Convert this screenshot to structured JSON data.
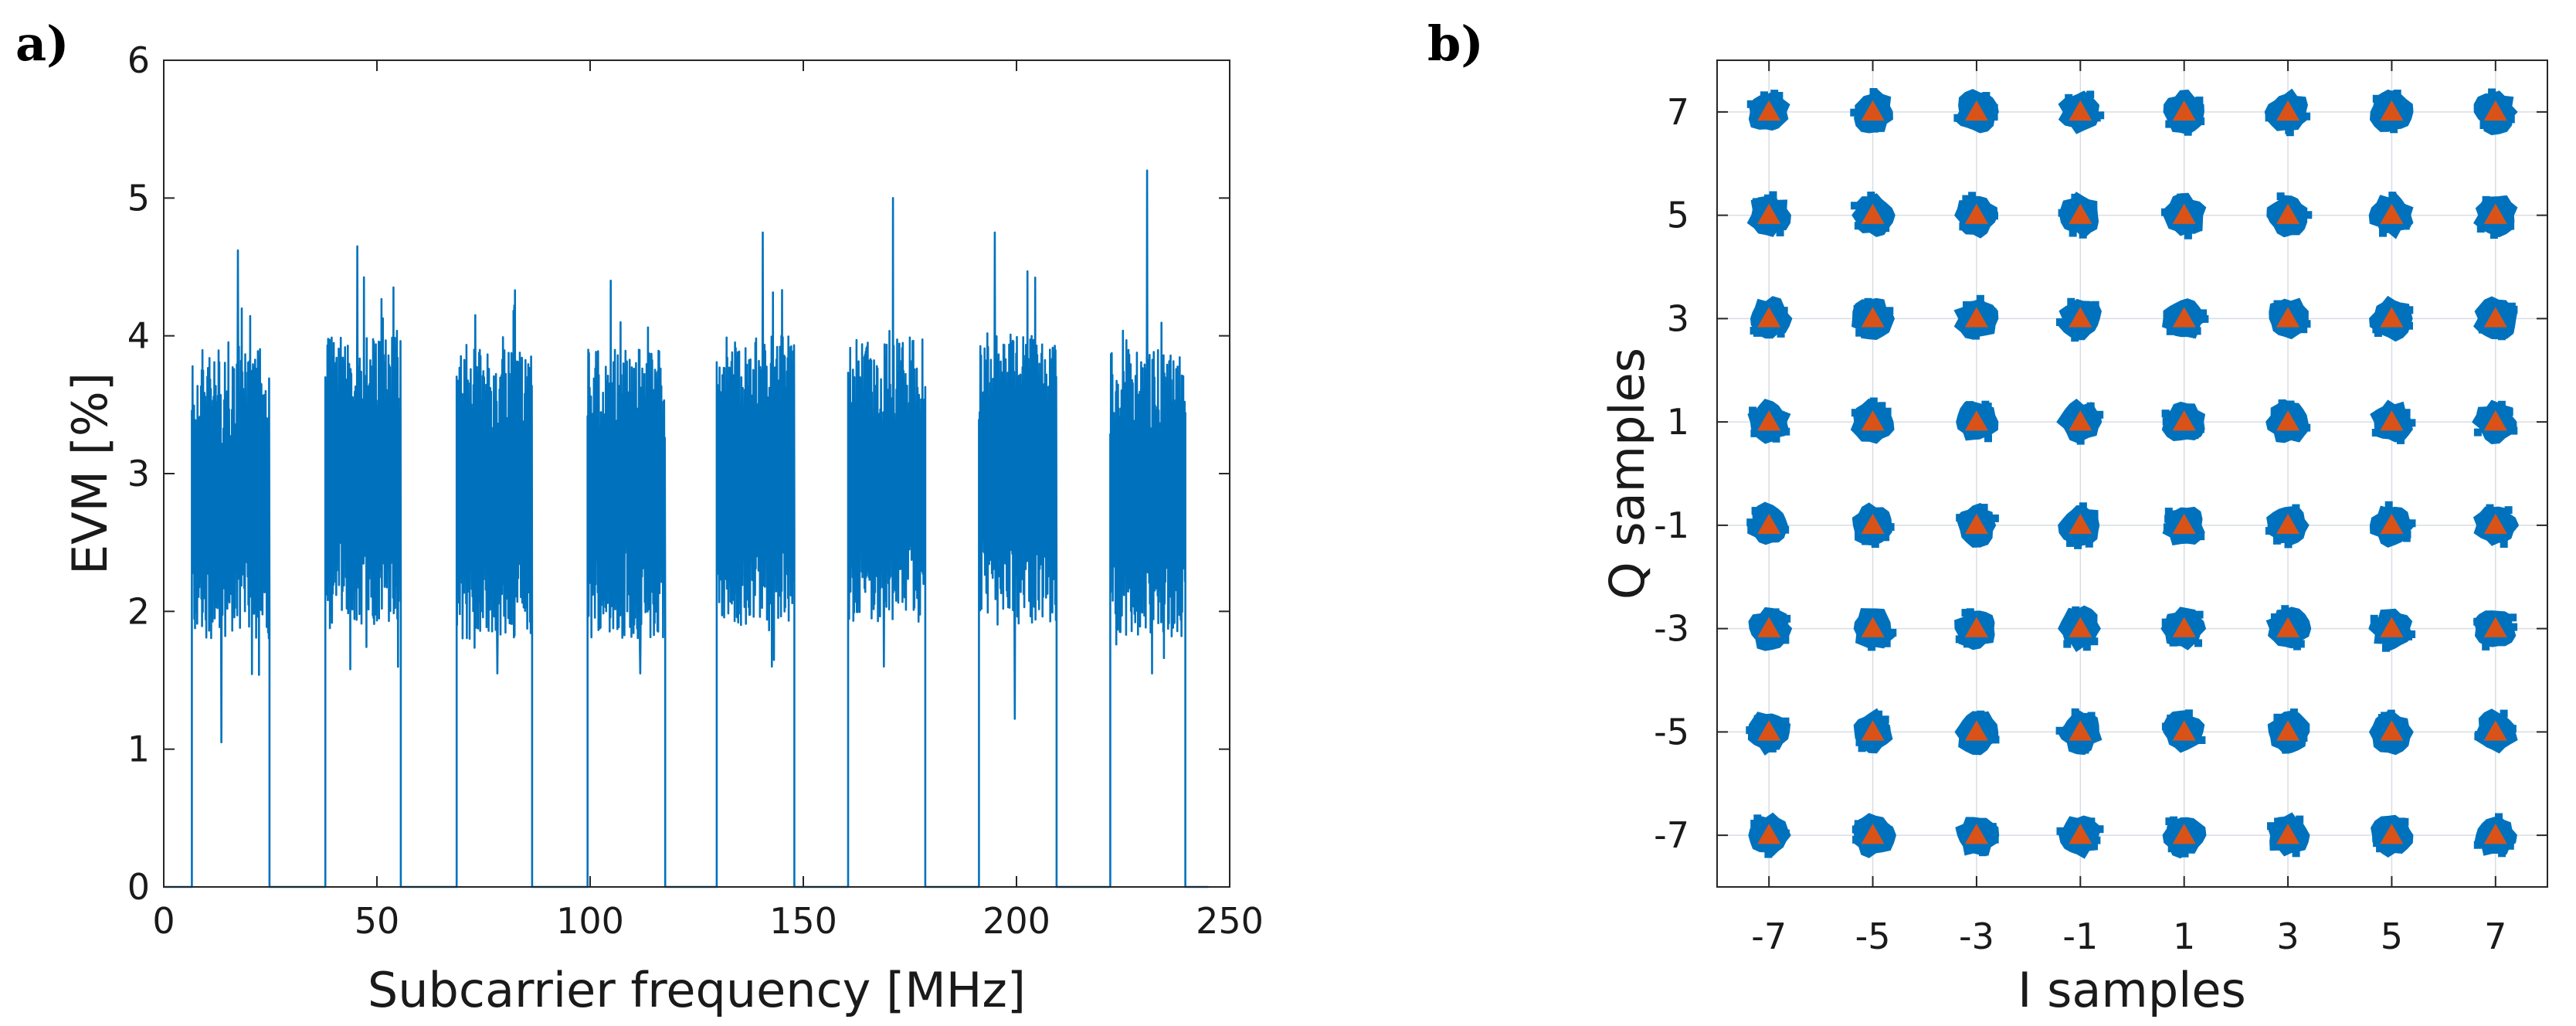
{
  "colors": {
    "series": "#0072BD",
    "marker": "#D95319",
    "axis": "#262626",
    "grid": "#d8dde3"
  },
  "chart_data": [
    {
      "panel_label": "a)",
      "type": "line",
      "xlabel": "Subcarrier frequency [MHz]",
      "ylabel": "EVM [%]",
      "xlim": [
        0,
        250
      ],
      "ylim": [
        0,
        6
      ],
      "x_ticks": [
        0,
        50,
        100,
        150,
        200,
        250
      ],
      "y_ticks": [
        0,
        1,
        2,
        3,
        4,
        5,
        6
      ],
      "x_tick_labels": [
        "0",
        "50",
        "100",
        "150",
        "200",
        "250"
      ],
      "y_tick_labels": [
        "0",
        "1",
        "2",
        "3",
        "4",
        "5",
        "6"
      ],
      "grid": false,
      "data_range_mhz": [
        0,
        245
      ],
      "baseline_evm_percent": 0,
      "bands": [
        {
          "start": 6.6,
          "end": 24.8,
          "typical_min": 1.8,
          "typical_max": 3.9,
          "peak": 4.62,
          "trough": 1.05
        },
        {
          "start": 37.9,
          "end": 55.6,
          "typical_min": 1.9,
          "typical_max": 4.0,
          "peak": 4.65,
          "trough": 1.58
        },
        {
          "start": 68.7,
          "end": 86.4,
          "typical_min": 1.8,
          "typical_max": 3.9,
          "peak": 4.15,
          "trough": 1.55
        },
        {
          "start": 99.4,
          "end": 117.6,
          "typical_min": 1.8,
          "typical_max": 3.9,
          "peak": 4.4,
          "trough": 1.55
        },
        {
          "start": 129.7,
          "end": 147.9,
          "typical_min": 1.9,
          "typical_max": 4.0,
          "peak": 4.75,
          "trough": 1.6
        },
        {
          "start": 160.5,
          "end": 178.6,
          "typical_min": 1.9,
          "typical_max": 4.0,
          "peak": 5.0,
          "trough": 1.6
        },
        {
          "start": 191.2,
          "end": 209.4,
          "typical_min": 1.9,
          "typical_max": 4.0,
          "peak": 4.75,
          "trough": 1.22
        },
        {
          "start": 222.0,
          "end": 239.6,
          "typical_min": 1.8,
          "typical_max": 3.9,
          "peak": 5.2,
          "trough": 1.55
        }
      ]
    },
    {
      "panel_label": "b)",
      "type": "scatter",
      "xlabel": "I samples",
      "ylabel": "Q samples",
      "xlim": [
        -8,
        8
      ],
      "ylim": [
        -8,
        8
      ],
      "x_ticks": [
        -7,
        -5,
        -3,
        -1,
        1,
        3,
        5,
        7
      ],
      "y_ticks": [
        -7,
        -5,
        -3,
        -1,
        1,
        3,
        5,
        7
      ],
      "x_tick_labels": [
        "-7",
        "-5",
        "-3",
        "-1",
        "1",
        "3",
        "5",
        "7"
      ],
      "y_tick_labels": [
        "-7",
        "-5",
        "-3",
        "-1",
        "1",
        "3",
        "5",
        "7"
      ],
      "grid": true,
      "constellation": "64-QAM",
      "ideal_points_i": [
        -7,
        -5,
        -3,
        -1,
        1,
        3,
        5,
        7
      ],
      "ideal_points_q": [
        -7,
        -5,
        -3,
        -1,
        1,
        3,
        5,
        7
      ],
      "received_cluster_radius": 0.38
    }
  ]
}
